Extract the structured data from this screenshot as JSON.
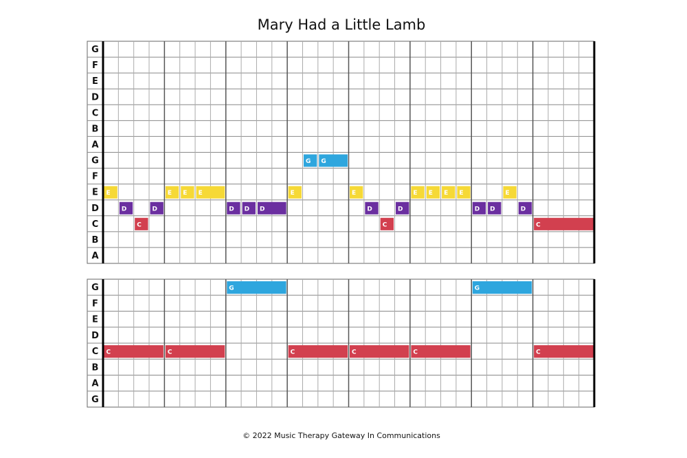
{
  "title": "Mary Had a Little Lamb",
  "grids": [
    {
      "rows": [
        "G",
        "F",
        "E",
        "D",
        "C",
        "B",
        "A",
        "G",
        "F",
        "E",
        "D",
        "C",
        "B",
        "A"
      ],
      "notes": [
        {
          "label": "E",
          "row": 9,
          "beats": 1
        },
        {
          "label": "D",
          "row": 10,
          "beats": 1
        },
        {
          "label": "C",
          "row": 11,
          "beats": 1
        },
        {
          "label": "D",
          "row": 10,
          "beats": 1
        },
        {
          "label": "E",
          "row": 9,
          "beats": 1
        },
        {
          "label": "E",
          "row": 9,
          "beats": 1
        },
        {
          "label": "E",
          "row": 9,
          "beats": 2
        },
        {
          "label": "D",
          "row": 10,
          "beats": 1
        },
        {
          "label": "D",
          "row": 10,
          "beats": 1
        },
        {
          "label": "D",
          "row": 10,
          "beats": 2
        },
        {
          "label": "E",
          "row": 9,
          "beats": 1
        },
        {
          "label": "G",
          "row": 7,
          "beats": 1
        },
        {
          "label": "G",
          "row": 7,
          "beats": 2
        },
        {
          "label": "E",
          "row": 9,
          "beats": 1
        },
        {
          "label": "D",
          "row": 10,
          "beats": 1
        },
        {
          "label": "C",
          "row": 11,
          "beats": 1
        },
        {
          "label": "D",
          "row": 10,
          "beats": 1
        },
        {
          "label": "E",
          "row": 9,
          "beats": 1
        },
        {
          "label": "E",
          "row": 9,
          "beats": 1
        },
        {
          "label": "E",
          "row": 9,
          "beats": 1
        },
        {
          "label": "E",
          "row": 9,
          "beats": 1
        },
        {
          "label": "D",
          "row": 10,
          "beats": 1
        },
        {
          "label": "D",
          "row": 10,
          "beats": 1
        },
        {
          "label": "E",
          "row": 9,
          "beats": 1
        },
        {
          "label": "D",
          "row": 10,
          "beats": 1
        },
        {
          "label": "C",
          "row": 11,
          "beats": 4
        }
      ]
    },
    {
      "rows": [
        "G",
        "F",
        "E",
        "D",
        "C",
        "B",
        "A",
        "G"
      ],
      "notes": [
        {
          "label": "C",
          "row": 4,
          "beats": 4
        },
        {
          "label": "C",
          "row": 4,
          "beats": 4
        },
        {
          "label": "G",
          "row": 0,
          "beats": 4
        },
        {
          "label": "C",
          "row": 4,
          "beats": 4
        },
        {
          "label": "C",
          "row": 4,
          "beats": 4
        },
        {
          "label": "C",
          "row": 4,
          "beats": 4
        },
        {
          "label": "G",
          "row": 0,
          "beats": 4
        },
        {
          "label": "C",
          "row": 4,
          "beats": 4
        }
      ]
    }
  ],
  "colors": {
    "C": "#d2404f",
    "D": "#6b2fa0",
    "E": "#f6d936",
    "G": "#2ea6de"
  },
  "footer": "© 2022 Music Therapy Gateway In Communications"
}
